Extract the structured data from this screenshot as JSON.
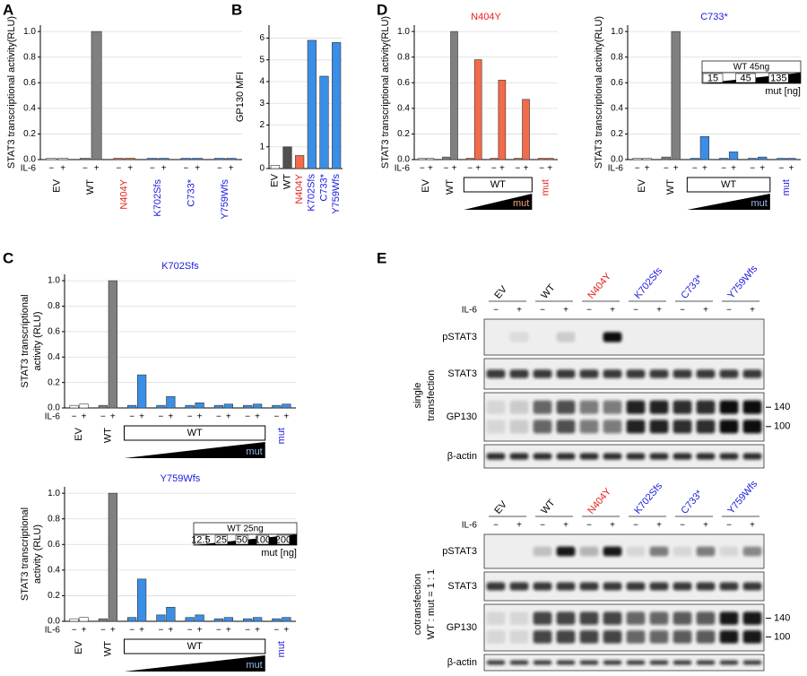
{
  "chart_data": [
    {
      "type": "bar",
      "panel": "A",
      "ylabel": "STAT3 transcriptional activity(RLU)",
      "ylim": [
        0,
        1.05
      ],
      "yticks": [
        {
          "value": 0,
          "label": "0.0"
        },
        0.2,
        0.4,
        0.6,
        0.8,
        {
          "value": 1,
          "label": "1.0"
        }
      ],
      "grid": true,
      "row_label": "IL-6",
      "categories": [
        "EV",
        "WT",
        "N404Y",
        "K702Sfs",
        "C733*",
        "Y759Wfs"
      ],
      "label_colors": [
        "#000000",
        "#000000",
        "#e8201a",
        "#1a1ae0",
        "#1a1ae0",
        "#1a1ae0"
      ],
      "bar_colors": [
        "#ffffff",
        "#808080",
        "#f26b4a",
        "#3a8ee6",
        "#3a8ee6",
        "#3a8ee6"
      ],
      "series": [
        {
          "name": "−",
          "values": [
            0.01,
            0.01,
            0.01,
            0.01,
            0.01,
            0.01
          ]
        },
        {
          "name": "+",
          "values": [
            0.01,
            1.0,
            0.01,
            0.01,
            0.01,
            0.01
          ]
        }
      ]
    },
    {
      "type": "bar",
      "panel": "B",
      "ylabel": "GP130 MFI",
      "ylim": [
        0,
        6.6
      ],
      "yticks": [
        0,
        1,
        2,
        3,
        4,
        5,
        6
      ],
      "grid": true,
      "categories": [
        "EV",
        "WT",
        "N404Y",
        "K702Sfs",
        "C733*",
        "Y759Wfs"
      ],
      "label_colors": [
        "#000000",
        "#000000",
        "#e8201a",
        "#1a1ae0",
        "#1a1ae0",
        "#1a1ae0"
      ],
      "bar_colors": [
        "#ffffff",
        "#505050",
        "#f26b4a",
        "#3a8ee6",
        "#3a8ee6",
        "#3a8ee6"
      ],
      "values": [
        0.15,
        1.0,
        0.6,
        5.9,
        4.25,
        5.8
      ]
    },
    {
      "type": "bar",
      "panel": "D",
      "title": "N404Y",
      "title_color": "#e8201a",
      "ylabel": "STAT3 transcriptional activity(RLU)",
      "ylim": [
        0,
        1.05
      ],
      "yticks": [
        {
          "value": 0,
          "label": "0.0"
        },
        0.2,
        0.4,
        0.6,
        0.8,
        {
          "value": 1,
          "label": "1.0"
        }
      ],
      "grid": true,
      "row_label": "IL-6",
      "categories": [
        "EV",
        "WT",
        null,
        null,
        null,
        "mut"
      ],
      "label_colors": [
        "#000000",
        "#000000",
        null,
        null,
        null,
        "#e8201a"
      ],
      "bar_colors": [
        "#ffffff",
        "#808080",
        "#f26b4a",
        "#f26b4a",
        "#f26b4a",
        "#f26b4a"
      ],
      "bracket": {
        "label": "WT",
        "ramp_label": "mut",
        "ramp_color": "#f4a582"
      },
      "series": [
        {
          "name": "−",
          "values": [
            0.01,
            0.02,
            0.01,
            0.01,
            0.01,
            0.01
          ]
        },
        {
          "name": "+",
          "values": [
            0.01,
            1.0,
            0.78,
            0.62,
            0.47,
            0.01
          ]
        }
      ]
    },
    {
      "type": "bar",
      "title": "C733*",
      "title_color": "#1a1ae0",
      "ylabel": "STAT3 transcriptional activity(RLU)",
      "ylim": [
        0,
        1.05
      ],
      "yticks": [
        {
          "value": 0,
          "label": "0.0"
        },
        0.2,
        0.4,
        0.6,
        0.8,
        {
          "value": 1,
          "label": "1.0"
        }
      ],
      "grid": true,
      "row_label": "IL-6",
      "categories": [
        "EV",
        "WT",
        null,
        null,
        null,
        "mut"
      ],
      "label_colors": [
        "#000000",
        "#000000",
        null,
        null,
        null,
        "#1a1ae0"
      ],
      "bar_colors": [
        "#ffffff",
        "#808080",
        "#3a8ee6",
        "#3a8ee6",
        "#3a8ee6",
        "#3a8ee6"
      ],
      "bracket": {
        "label": "WT",
        "ramp_label": "mut",
        "ramp_color": "#9ab8f0"
      },
      "inset": {
        "title": "WT 45ng",
        "steps": [
          "15",
          "45",
          "135"
        ],
        "unit": "mut [ng]"
      },
      "series": [
        {
          "name": "−",
          "values": [
            0.01,
            0.02,
            0.01,
            0.01,
            0.01,
            0.01
          ]
        },
        {
          "name": "+",
          "values": [
            0.01,
            1.0,
            0.18,
            0.06,
            0.02,
            0.01
          ]
        }
      ]
    },
    {
      "type": "bar",
      "panel": "C",
      "title": "K702Sfs",
      "title_color": "#1a1ae0",
      "ylabel": [
        "STAT3 transcriptional",
        "activity (RLU)"
      ],
      "ylim": [
        0,
        1.05
      ],
      "yticks": [
        {
          "value": 0,
          "label": "0.0"
        },
        0.2,
        0.4,
        0.6,
        0.8,
        {
          "value": 1,
          "label": "1.0"
        }
      ],
      "grid": true,
      "row_label": "IL-6",
      "categories": [
        "EV",
        "WT",
        null,
        null,
        null,
        null,
        null,
        "mut"
      ],
      "label_colors": [
        "#000000",
        "#000000",
        null,
        null,
        null,
        null,
        null,
        "#1a1ae0"
      ],
      "bar_colors": [
        "#ffffff",
        "#808080",
        "#3a8ee6",
        "#3a8ee6",
        "#3a8ee6",
        "#3a8ee6",
        "#3a8ee6",
        "#3a8ee6"
      ],
      "bracket": {
        "label": "WT",
        "ramp_label": "mut",
        "ramp_color": "#9ab8f0"
      },
      "series": [
        {
          "name": "−",
          "values": [
            0.02,
            0.02,
            0.02,
            0.02,
            0.02,
            0.02,
            0.02,
            0.02
          ]
        },
        {
          "name": "+",
          "values": [
            0.03,
            1.0,
            0.26,
            0.09,
            0.04,
            0.03,
            0.03,
            0.03
          ]
        }
      ]
    },
    {
      "type": "bar",
      "title": "Y759Wfs",
      "title_color": "#1a1ae0",
      "ylabel": [
        "STAT3 transcriptional",
        "activity (RLU)"
      ],
      "ylim": [
        0,
        1.05
      ],
      "yticks": [
        {
          "value": 0,
          "label": "0.0"
        },
        0.2,
        0.4,
        0.6,
        0.8,
        {
          "value": 1,
          "label": "1.0"
        }
      ],
      "grid": true,
      "row_label": "IL-6",
      "categories": [
        "EV",
        "WT",
        null,
        null,
        null,
        null,
        null,
        "mut"
      ],
      "label_colors": [
        "#000000",
        "#000000",
        null,
        null,
        null,
        null,
        null,
        "#1a1ae0"
      ],
      "bar_colors": [
        "#ffffff",
        "#808080",
        "#3a8ee6",
        "#3a8ee6",
        "#3a8ee6",
        "#3a8ee6",
        "#3a8ee6",
        "#3a8ee6"
      ],
      "bracket": {
        "label": "WT",
        "ramp_label": "mut",
        "ramp_color": "#9ab8f0"
      },
      "inset": {
        "title": "WT 25ng",
        "steps": [
          "12.5",
          "25",
          "50",
          "100",
          "200"
        ],
        "unit": "mut [ng]"
      },
      "series": [
        {
          "name": "−",
          "values": [
            0.02,
            0.02,
            0.03,
            0.05,
            0.03,
            0.02,
            0.02,
            0.02
          ]
        },
        {
          "name": "+",
          "values": [
            0.03,
            1.0,
            0.33,
            0.11,
            0.05,
            0.03,
            0.03,
            0.03
          ]
        }
      ]
    }
  ],
  "blots": {
    "panel": "E",
    "row_label": "IL-6",
    "lanes": [
      "−",
      "+"
    ],
    "groups": [
      "EV",
      "WT",
      "N404Y",
      "K702Sfs",
      "C733*",
      "Y759Wfs"
    ],
    "group_colors": [
      "#000000",
      "#000000",
      "#e8201a",
      "#1a1ae0",
      "#1a1ae0",
      "#1a1ae0"
    ],
    "markers": [
      140,
      100
    ],
    "sections": [
      {
        "side_label": [
          "single",
          "transfection"
        ],
        "rows": [
          "pSTAT3",
          "STAT3",
          "GP130",
          "β-actin"
        ]
      },
      {
        "side_label": [
          "cotransfection",
          "WT : mut = 1 : 1"
        ],
        "rows": [
          "pSTAT3",
          "STAT3",
          "GP130",
          "β-actin"
        ]
      }
    ]
  }
}
